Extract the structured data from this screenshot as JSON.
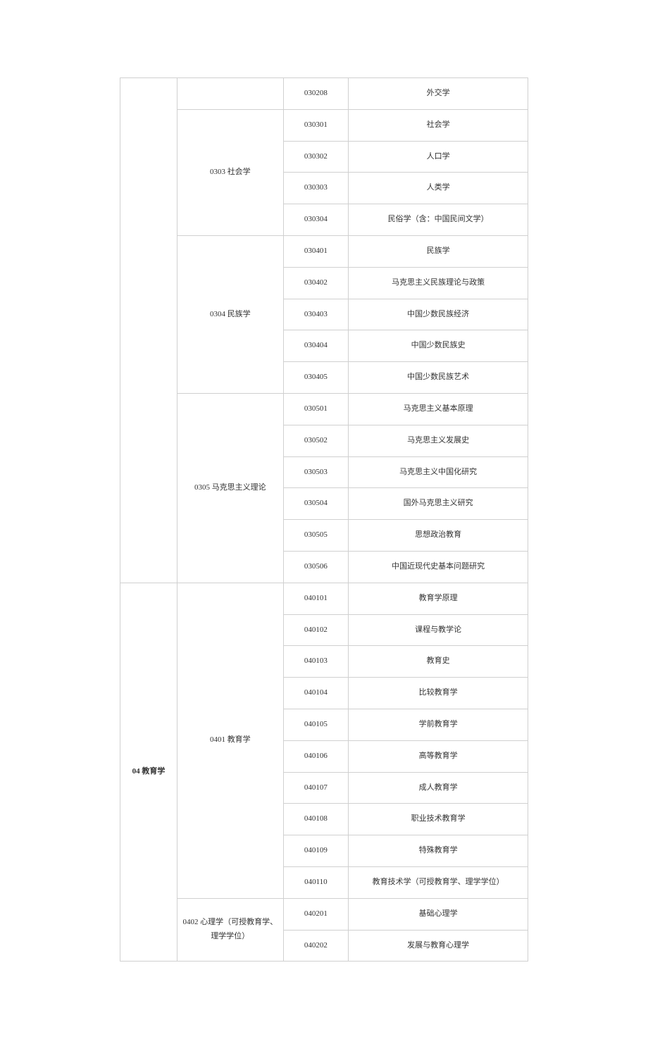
{
  "table": {
    "border_color": "#d0d0d0",
    "background_color": "#ffffff",
    "text_color": "#333333",
    "font_size": 11,
    "sections": [
      {
        "col1": "",
        "col1_rowspan": 16,
        "groups": [
          {
            "col2": "",
            "rows": [
              {
                "code": "030208",
                "name": "外交学"
              }
            ]
          },
          {
            "col2": "0303 社会学",
            "rows": [
              {
                "code": "030301",
                "name": "社会学"
              },
              {
                "code": "030302",
                "name": "人口学"
              },
              {
                "code": "030303",
                "name": "人类学"
              },
              {
                "code": "030304",
                "name": "民俗学（含：中国民间文学）"
              }
            ]
          },
          {
            "col2": "0304 民族学",
            "rows": [
              {
                "code": "030401",
                "name": "民族学"
              },
              {
                "code": "030402",
                "name": "马克思主义民族理论与政策"
              },
              {
                "code": "030403",
                "name": "中国少数民族经济"
              },
              {
                "code": "030404",
                "name": "中国少数民族史"
              },
              {
                "code": "030405",
                "name": "中国少数民族艺术"
              }
            ]
          },
          {
            "col2": "0305 马克思主义理论",
            "rows": [
              {
                "code": "030501",
                "name": "马克思主义基本原理"
              },
              {
                "code": "030502",
                "name": "马克思主义发展史"
              },
              {
                "code": "030503",
                "name": "马克思主义中国化研究"
              },
              {
                "code": "030504",
                "name": "国外马克思主义研究"
              },
              {
                "code": "030505",
                "name": "思想政治教育"
              },
              {
                "code": "030506",
                "name": "中国近现代史基本问题研究"
              }
            ]
          }
        ]
      },
      {
        "col1": "04 教育学",
        "col1_rowspan": 12,
        "groups": [
          {
            "col2": "0401 教育学",
            "rows": [
              {
                "code": "040101",
                "name": "教育学原理"
              },
              {
                "code": "040102",
                "name": "课程与教学论"
              },
              {
                "code": "040103",
                "name": "教育史"
              },
              {
                "code": "040104",
                "name": "比较教育学"
              },
              {
                "code": "040105",
                "name": "学前教育学"
              },
              {
                "code": "040106",
                "name": "高等教育学"
              },
              {
                "code": "040107",
                "name": "成人教育学"
              },
              {
                "code": "040108",
                "name": "职业技术教育学"
              },
              {
                "code": "040109",
                "name": "特殊教育学"
              },
              {
                "code": "040110",
                "name": "教育技术学（可授教育学、理学学位）"
              }
            ]
          },
          {
            "col2": "0402 心理学（可授教育学、理学学位）",
            "rows": [
              {
                "code": "040201",
                "name": "基础心理学"
              },
              {
                "code": "040202",
                "name": "发展与教育心理学"
              }
            ]
          }
        ]
      }
    ]
  }
}
